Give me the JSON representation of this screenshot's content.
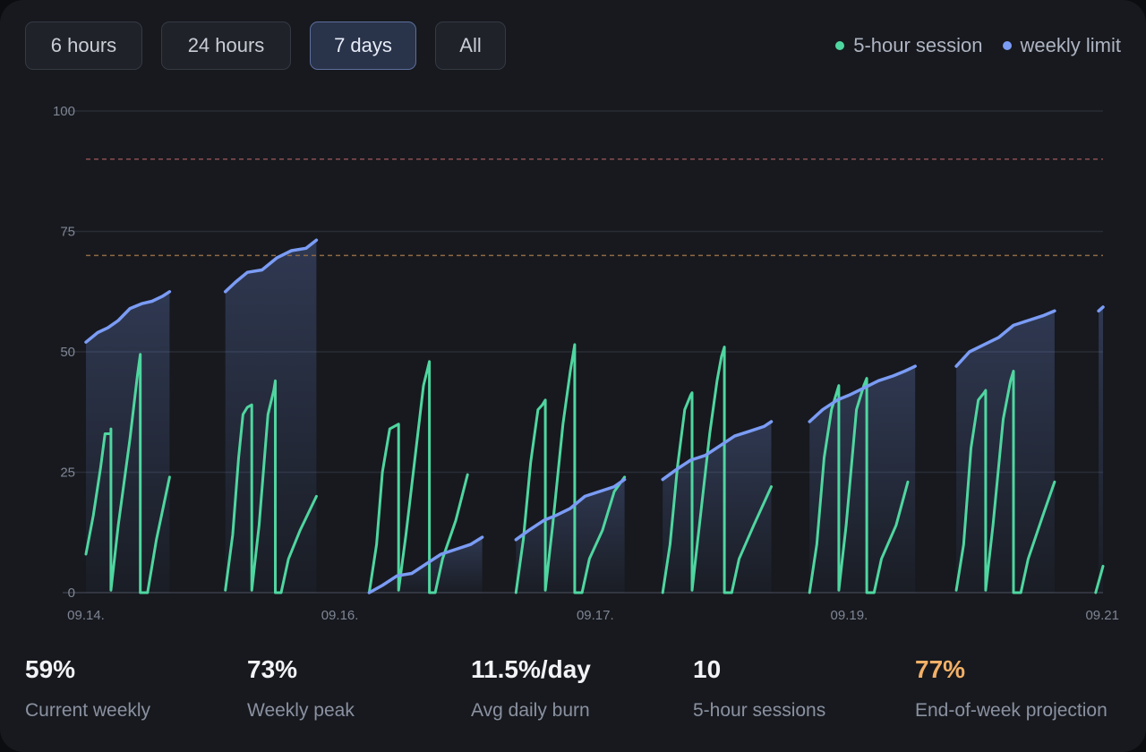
{
  "range_buttons": [
    {
      "label": "6 hours",
      "active": false
    },
    {
      "label": "24 hours",
      "active": false
    },
    {
      "label": "7 days",
      "active": true
    },
    {
      "label": "All",
      "active": false
    }
  ],
  "legend": [
    {
      "label": "5-hour session",
      "color": "#4fd6a0"
    },
    {
      "label": "weekly limit",
      "color": "#7b9cf5"
    }
  ],
  "stats": [
    {
      "value": "59%",
      "label": "Current weekly"
    },
    {
      "value": "73%",
      "label": "Weekly peak"
    },
    {
      "value": "11.5%/day",
      "label": "Avg daily burn"
    },
    {
      "value": "10",
      "label": "5-hour sessions"
    },
    {
      "value": "77%",
      "label": "End-of-week projection",
      "highlight": true
    }
  ],
  "chart_data": {
    "type": "line",
    "x_unit": "days from 09.14.",
    "ylim": [
      0,
      100
    ],
    "y_ticks": [
      0,
      25,
      50,
      75,
      100
    ],
    "x_ticks": [
      {
        "x": 0,
        "label": "09.14."
      },
      {
        "x": 1.73,
        "label": "09.16."
      },
      {
        "x": 3.47,
        "label": "09.17."
      },
      {
        "x": 5.2,
        "label": "09.19."
      },
      {
        "x": 6.93,
        "label": "09.21"
      }
    ],
    "xlim": [
      0,
      6.93
    ],
    "grid": true,
    "legend_position": "top-right",
    "reference_lines": [
      {
        "y": 90,
        "color": "#8a4e52"
      },
      {
        "y": 70,
        "color": "#8f6a44"
      }
    ],
    "series": [
      {
        "name": "weekly limit",
        "color": "#7b9cf5",
        "segments": [
          [
            [
              0.0,
              52
            ],
            [
              0.08,
              54
            ],
            [
              0.15,
              55
            ],
            [
              0.22,
              56.5
            ],
            [
              0.3,
              59
            ],
            [
              0.38,
              60
            ],
            [
              0.45,
              60.5
            ],
            [
              0.52,
              61.5
            ],
            [
              0.57,
              62.5
            ]
          ],
          [
            [
              0.95,
              62.5
            ],
            [
              1.02,
              64.5
            ],
            [
              1.1,
              66.5
            ],
            [
              1.2,
              67
            ],
            [
              1.3,
              69.5
            ],
            [
              1.4,
              71
            ],
            [
              1.5,
              71.5
            ],
            [
              1.57,
              73.2
            ]
          ],
          [
            [
              1.93,
              0
            ],
            [
              2.02,
              1.5
            ],
            [
              2.12,
              3.5
            ],
            [
              2.22,
              4
            ],
            [
              2.32,
              6
            ],
            [
              2.42,
              8
            ],
            [
              2.52,
              9
            ],
            [
              2.62,
              10
            ],
            [
              2.7,
              11.5
            ]
          ],
          [
            [
              2.93,
              11
            ],
            [
              3.02,
              13
            ],
            [
              3.12,
              15
            ],
            [
              3.2,
              16
            ],
            [
              3.3,
              17.5
            ],
            [
              3.4,
              20
            ],
            [
              3.5,
              21
            ],
            [
              3.6,
              22
            ],
            [
              3.67,
              23.5
            ]
          ],
          [
            [
              3.93,
              23.5
            ],
            [
              4.02,
              25.5
            ],
            [
              4.12,
              27.5
            ],
            [
              4.22,
              28.5
            ],
            [
              4.32,
              30.5
            ],
            [
              4.42,
              32.5
            ],
            [
              4.52,
              33.5
            ],
            [
              4.62,
              34.5
            ],
            [
              4.67,
              35.5
            ]
          ],
          [
            [
              4.93,
              35.5
            ],
            [
              5.02,
              38
            ],
            [
              5.12,
              40
            ],
            [
              5.2,
              41
            ],
            [
              5.3,
              42.5
            ],
            [
              5.4,
              44
            ],
            [
              5.5,
              45
            ],
            [
              5.58,
              46
            ],
            [
              5.65,
              47
            ]
          ],
          [
            [
              5.93,
              47
            ],
            [
              6.02,
              50
            ],
            [
              6.12,
              51.5
            ],
            [
              6.22,
              53
            ],
            [
              6.32,
              55.5
            ],
            [
              6.42,
              56.5
            ],
            [
              6.52,
              57.5
            ],
            [
              6.6,
              58.5
            ]
          ],
          [
            [
              6.9,
              58.5
            ],
            [
              6.93,
              59.3
            ]
          ]
        ]
      },
      {
        "name": "5-hour session",
        "color": "#4fd6a0",
        "segments": [
          [
            [
              0.0,
              8
            ],
            [
              0.05,
              16
            ],
            [
              0.1,
              26
            ],
            [
              0.13,
              33
            ],
            [
              0.17,
              33
            ],
            [
              0.17,
              34
            ],
            [
              0.17,
              0.5
            ],
            [
              0.22,
              14
            ],
            [
              0.3,
              32
            ],
            [
              0.35,
              45
            ],
            [
              0.37,
              49.5
            ],
            [
              0.37,
              0
            ],
            [
              0.42,
              0
            ],
            [
              0.48,
              11
            ],
            [
              0.57,
              24
            ]
          ],
          [
            [
              0.95,
              0.5
            ],
            [
              1.0,
              12
            ],
            [
              1.04,
              28
            ],
            [
              1.07,
              37
            ],
            [
              1.1,
              38.5
            ],
            [
              1.13,
              39
            ],
            [
              1.13,
              0.5
            ],
            [
              1.18,
              14
            ],
            [
              1.24,
              37
            ],
            [
              1.28,
              42
            ],
            [
              1.29,
              44
            ],
            [
              1.29,
              0
            ],
            [
              1.33,
              0
            ],
            [
              1.38,
              7
            ],
            [
              1.46,
              13
            ],
            [
              1.57,
              20
            ]
          ],
          [
            [
              1.93,
              0
            ],
            [
              1.98,
              10
            ],
            [
              2.02,
              25
            ],
            [
              2.07,
              34
            ],
            [
              2.1,
              34.5
            ],
            [
              2.13,
              35
            ],
            [
              2.13,
              0.5
            ],
            [
              2.18,
              12
            ],
            [
              2.25,
              30
            ],
            [
              2.3,
              43
            ],
            [
              2.34,
              48
            ],
            [
              2.34,
              0
            ],
            [
              2.38,
              0
            ],
            [
              2.43,
              7
            ],
            [
              2.52,
              15
            ],
            [
              2.6,
              24.5
            ]
          ],
          [
            [
              2.93,
              0
            ],
            [
              2.98,
              11
            ],
            [
              3.03,
              27
            ],
            [
              3.08,
              38
            ],
            [
              3.11,
              39
            ],
            [
              3.13,
              40
            ],
            [
              3.13,
              0.5
            ],
            [
              3.18,
              14
            ],
            [
              3.25,
              35
            ],
            [
              3.3,
              46
            ],
            [
              3.33,
              51.5
            ],
            [
              3.33,
              0
            ],
            [
              3.38,
              0
            ],
            [
              3.43,
              7
            ],
            [
              3.52,
              13
            ],
            [
              3.6,
              21
            ],
            [
              3.67,
              24
            ]
          ],
          [
            [
              3.93,
              0
            ],
            [
              3.98,
              10
            ],
            [
              4.03,
              26
            ],
            [
              4.08,
              38
            ],
            [
              4.12,
              41
            ],
            [
              4.13,
              41.5
            ],
            [
              4.13,
              0.5
            ],
            [
              4.18,
              14
            ],
            [
              4.25,
              33
            ],
            [
              4.3,
              44
            ],
            [
              4.33,
              49
            ],
            [
              4.35,
              51
            ],
            [
              4.35,
              0
            ],
            [
              4.4,
              0
            ],
            [
              4.45,
              7
            ],
            [
              4.55,
              14
            ],
            [
              4.67,
              22
            ]
          ],
          [
            [
              4.93,
              0
            ],
            [
              4.98,
              10
            ],
            [
              5.03,
              28
            ],
            [
              5.08,
              38
            ],
            [
              5.12,
              42
            ],
            [
              5.13,
              43
            ],
            [
              5.13,
              0.5
            ],
            [
              5.18,
              14
            ],
            [
              5.25,
              38
            ],
            [
              5.3,
              43
            ],
            [
              5.32,
              44.5
            ],
            [
              5.32,
              0
            ],
            [
              5.37,
              0
            ],
            [
              5.42,
              7
            ],
            [
              5.52,
              14
            ],
            [
              5.6,
              23
            ]
          ],
          [
            [
              5.93,
              0.5
            ],
            [
              5.98,
              10
            ],
            [
              6.03,
              30
            ],
            [
              6.08,
              40
            ],
            [
              6.12,
              41.5
            ],
            [
              6.13,
              42
            ],
            [
              6.13,
              0.5
            ],
            [
              6.18,
              14
            ],
            [
              6.25,
              36
            ],
            [
              6.3,
              44
            ],
            [
              6.32,
              46
            ],
            [
              6.32,
              0
            ],
            [
              6.37,
              0
            ],
            [
              6.42,
              7
            ],
            [
              6.52,
              16
            ],
            [
              6.6,
              23
            ]
          ],
          [
            [
              6.88,
              0
            ],
            [
              6.93,
              5.5
            ]
          ]
        ]
      }
    ]
  }
}
